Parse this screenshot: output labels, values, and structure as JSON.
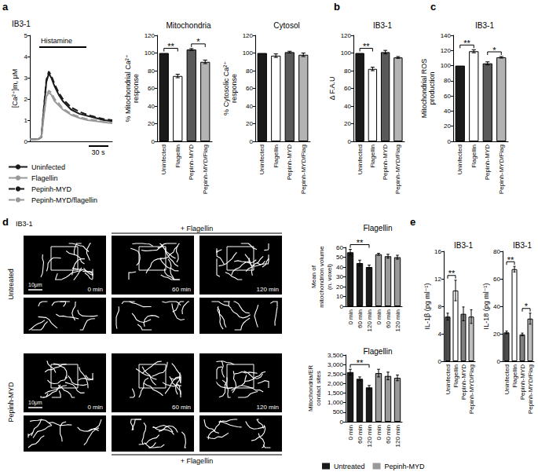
{
  "chart_data": [
    {
      "type": "line",
      "title": "IB3-1",
      "ylabel": "[Ca²⁺]m, μM",
      "x": [
        0,
        5,
        10,
        14,
        17,
        20,
        23,
        26,
        30,
        35,
        40,
        50,
        60,
        70,
        80,
        90,
        100
      ],
      "xlim": [
        0,
        100
      ],
      "ylim": [
        0,
        5
      ],
      "yticks": [
        0,
        1,
        2,
        3,
        4,
        5
      ],
      "tick_labels": "y",
      "legend": "bottom",
      "series": [
        {
          "name": "Uninfected",
          "color": "#1a1a1a",
          "line_style": "solid",
          "values": [
            0.1,
            0.1,
            0.1,
            0.2,
            1.5,
            2.8,
            3.2,
            3.0,
            2.6,
            2.2,
            1.9,
            1.5,
            1.3,
            1.2,
            1.1,
            1.0,
            0.95
          ]
        },
        {
          "name": "Flagellin",
          "color": "#999999",
          "line_style": "solid",
          "values": [
            0.1,
            0.1,
            0.1,
            0.2,
            1.2,
            2.1,
            2.3,
            2.2,
            1.9,
            1.7,
            1.5,
            1.25,
            1.1,
            1.0,
            0.95,
            0.9,
            0.85
          ]
        },
        {
          "name": "Pepinh-MYD",
          "color": "#1a1a1a",
          "line_style": "dashed",
          "values": [
            0.1,
            0.1,
            0.1,
            0.2,
            1.6,
            2.9,
            3.3,
            3.1,
            2.7,
            2.3,
            2.0,
            1.6,
            1.4,
            1.25,
            1.15,
            1.05,
            1.0
          ]
        },
        {
          "name": "Pepinh-MYD/flagellin",
          "color": "#999999",
          "line_style": "dashed",
          "values": [
            0.1,
            0.1,
            0.1,
            0.2,
            1.3,
            2.2,
            2.4,
            2.3,
            2.0,
            1.8,
            1.55,
            1.3,
            1.15,
            1.05,
            1.0,
            0.92,
            0.88
          ]
        }
      ],
      "annotations": [
        "Histamine",
        "30 s"
      ]
    },
    {
      "type": "bar",
      "title": "Mitochondria",
      "ylabel": "% Mitochondrial Ca²⁺ response",
      "categories": [
        "Uninfected",
        "Flagellin",
        "Pepinh-MYD",
        "Pepinh-MYD/Flag"
      ],
      "values": [
        100,
        74,
        104,
        90
      ],
      "errors": [
        0,
        2,
        1,
        2
      ],
      "colors": [
        "#1a1a1a",
        "#ffffff",
        "#595959",
        "#b3b3b3"
      ],
      "ylim": [
        0,
        120
      ],
      "yticks": [
        0,
        20,
        40,
        60,
        80,
        100,
        120
      ],
      "annotations": [
        {
          "text": "**",
          "between": [
            0,
            1
          ]
        },
        {
          "text": "*",
          "between": [
            2,
            3
          ]
        }
      ]
    },
    {
      "type": "bar",
      "title": "Cytosol",
      "ylabel": "% Cytosolic Ca²⁺ response",
      "categories": [
        "Uninfected",
        "Flagellin",
        "Pepinh-MYD",
        "Pepinh-MYD/Flag"
      ],
      "values": [
        100,
        97,
        101,
        98
      ],
      "errors": [
        0,
        2,
        1,
        2
      ],
      "colors": [
        "#1a1a1a",
        "#ffffff",
        "#595959",
        "#b3b3b3"
      ],
      "ylim": [
        0,
        120
      ],
      "yticks": [
        0,
        20,
        40,
        60,
        80,
        100,
        120
      ]
    },
    {
      "type": "bar",
      "title": "IB3-1",
      "ylabel": "Δ F.A.U",
      "categories": [
        "Uninfected",
        "Flagellin",
        "Pepinh-MYD",
        "Pepinh-MYD/Flag"
      ],
      "values": [
        100,
        82,
        101,
        95
      ],
      "errors": [
        0,
        2,
        2,
        1
      ],
      "colors": [
        "#1a1a1a",
        "#ffffff",
        "#595959",
        "#b3b3b3"
      ],
      "ylim": [
        0,
        120
      ],
      "yticks": [
        0,
        20,
        40,
        60,
        80,
        100,
        120
      ],
      "annotations": [
        {
          "text": "**",
          "between": [
            0,
            1
          ]
        }
      ]
    },
    {
      "type": "bar",
      "title": "IB3-1",
      "ylabel": "Mitochondrial ROS production",
      "categories": [
        "Uninfected",
        "Flagellin",
        "Pepinh-MYD",
        "Pepinh-MYD/Flag"
      ],
      "values": [
        100,
        119,
        103,
        111
      ],
      "errors": [
        0,
        2,
        2,
        1
      ],
      "colors": [
        "#1a1a1a",
        "#ffffff",
        "#595959",
        "#b3b3b3"
      ],
      "ylim": [
        0,
        140
      ],
      "yticks": [
        0,
        20,
        40,
        60,
        80,
        100,
        120,
        140
      ],
      "annotations": [
        {
          "text": "**",
          "between": [
            0,
            1
          ]
        },
        {
          "text": "*",
          "between": [
            2,
            3
          ]
        }
      ]
    },
    {
      "type": "bar",
      "title": "Flagellin",
      "ylabel": "Mean of mitochondrion volume (n. voxel)",
      "categories": [
        "0 min",
        "60 min",
        "120 min",
        "0 min",
        "60 min",
        "120 min"
      ],
      "series": [
        {
          "name": "Untreated",
          "color": "#1a1a1a",
          "values": [
            55,
            44,
            40,
            null,
            null,
            null
          ],
          "errors": [
            3,
            3,
            2,
            null,
            null,
            null
          ]
        },
        {
          "name": "Pepinh-MYD",
          "color": "#999999",
          "values": [
            null,
            null,
            null,
            53,
            51,
            50
          ],
          "errors": [
            null,
            null,
            null,
            1,
            2,
            2
          ]
        }
      ],
      "ylim": [
        0,
        60
      ],
      "yticks": [
        0,
        10,
        20,
        30,
        40,
        50,
        60
      ],
      "annotations": [
        {
          "text": "**",
          "between": [
            0,
            2
          ]
        }
      ]
    },
    {
      "type": "bar",
      "title": "Flagellin",
      "ylabel": "Mitochondria/ER contact sites",
      "categories": [
        "0 min",
        "60 min",
        "120 min",
        "0 min",
        "60 min",
        "120 min"
      ],
      "series": [
        {
          "name": "Untreated",
          "color": "#1a1a1a",
          "values": [
            2600,
            2250,
            1800,
            null,
            null,
            null
          ],
          "errors": [
            150,
            100,
            100,
            null,
            null,
            null
          ]
        },
        {
          "name": "Pepinh-MYD",
          "color": "#999999",
          "values": [
            null,
            null,
            null,
            2550,
            2400,
            2300
          ],
          "errors": [
            null,
            null,
            null,
            200,
            200,
            150
          ]
        }
      ],
      "ylim": [
        0,
        3500
      ],
      "yticks": [
        0,
        500,
        {
          "value": 1000,
          "label": "1,000"
        },
        {
          "value": 1500,
          "label": "1,500"
        },
        {
          "value": 2000,
          "label": "2,000"
        },
        {
          "value": 2500,
          "label": "2,500"
        },
        {
          "value": 3000,
          "label": "3,000"
        },
        {
          "value": 3500,
          "label": "3,500"
        }
      ],
      "legend": "bottom",
      "annotations": [
        {
          "text": "**",
          "between": [
            0,
            2
          ]
        }
      ]
    },
    {
      "type": "bar",
      "title": "IB3-1",
      "ylabel": "IL-1β (pg ml⁻¹)",
      "categories": [
        "Uninfected",
        "Flagellin",
        "Pepinh-MYD",
        "Pepinh-MYD/Flag"
      ],
      "values": [
        6.5,
        10.3,
        6.9,
        6.5
      ],
      "errors": [
        0.5,
        1.5,
        1.0,
        1.0
      ],
      "colors": [
        "#4d4d4d",
        "#ffffff",
        "#808080",
        "#bfbfbf"
      ],
      "ylim": [
        0,
        16
      ],
      "yticks": [
        0,
        4,
        8,
        12,
        16
      ],
      "annotations": [
        {
          "text": "**",
          "between": [
            0,
            1
          ]
        }
      ]
    },
    {
      "type": "bar",
      "title": "IB3-1",
      "ylabel": "IL-18 (pg ml⁻¹)",
      "categories": [
        "Uninfected",
        "Flagellin",
        "Pepinh-MYD",
        "Pepinh-MYD/Flag"
      ],
      "values": [
        21,
        67,
        19.5,
        31
      ],
      "errors": [
        1,
        2,
        1,
        4
      ],
      "colors": [
        "#4d4d4d",
        "#ffffff",
        "#808080",
        "#bfbfbf"
      ],
      "ylim": [
        0,
        80
      ],
      "yticks": [
        0,
        20,
        40,
        60,
        80
      ],
      "annotations": [
        {
          "text": "**",
          "between": [
            0,
            1
          ]
        },
        {
          "text": "*",
          "between": [
            2,
            3
          ]
        }
      ]
    }
  ],
  "figure": {
    "panel_letters": [
      "a",
      "b",
      "c",
      "d",
      "e"
    ],
    "microscopy": {
      "cell_line": "IB3-1",
      "rows": [
        "Untreated",
        "Pepinh-MYD"
      ],
      "timepoints": [
        "0 min",
        "60 min",
        "120 min"
      ],
      "treatment": "+ Flagellin",
      "scale_bar": "10μm"
    }
  }
}
